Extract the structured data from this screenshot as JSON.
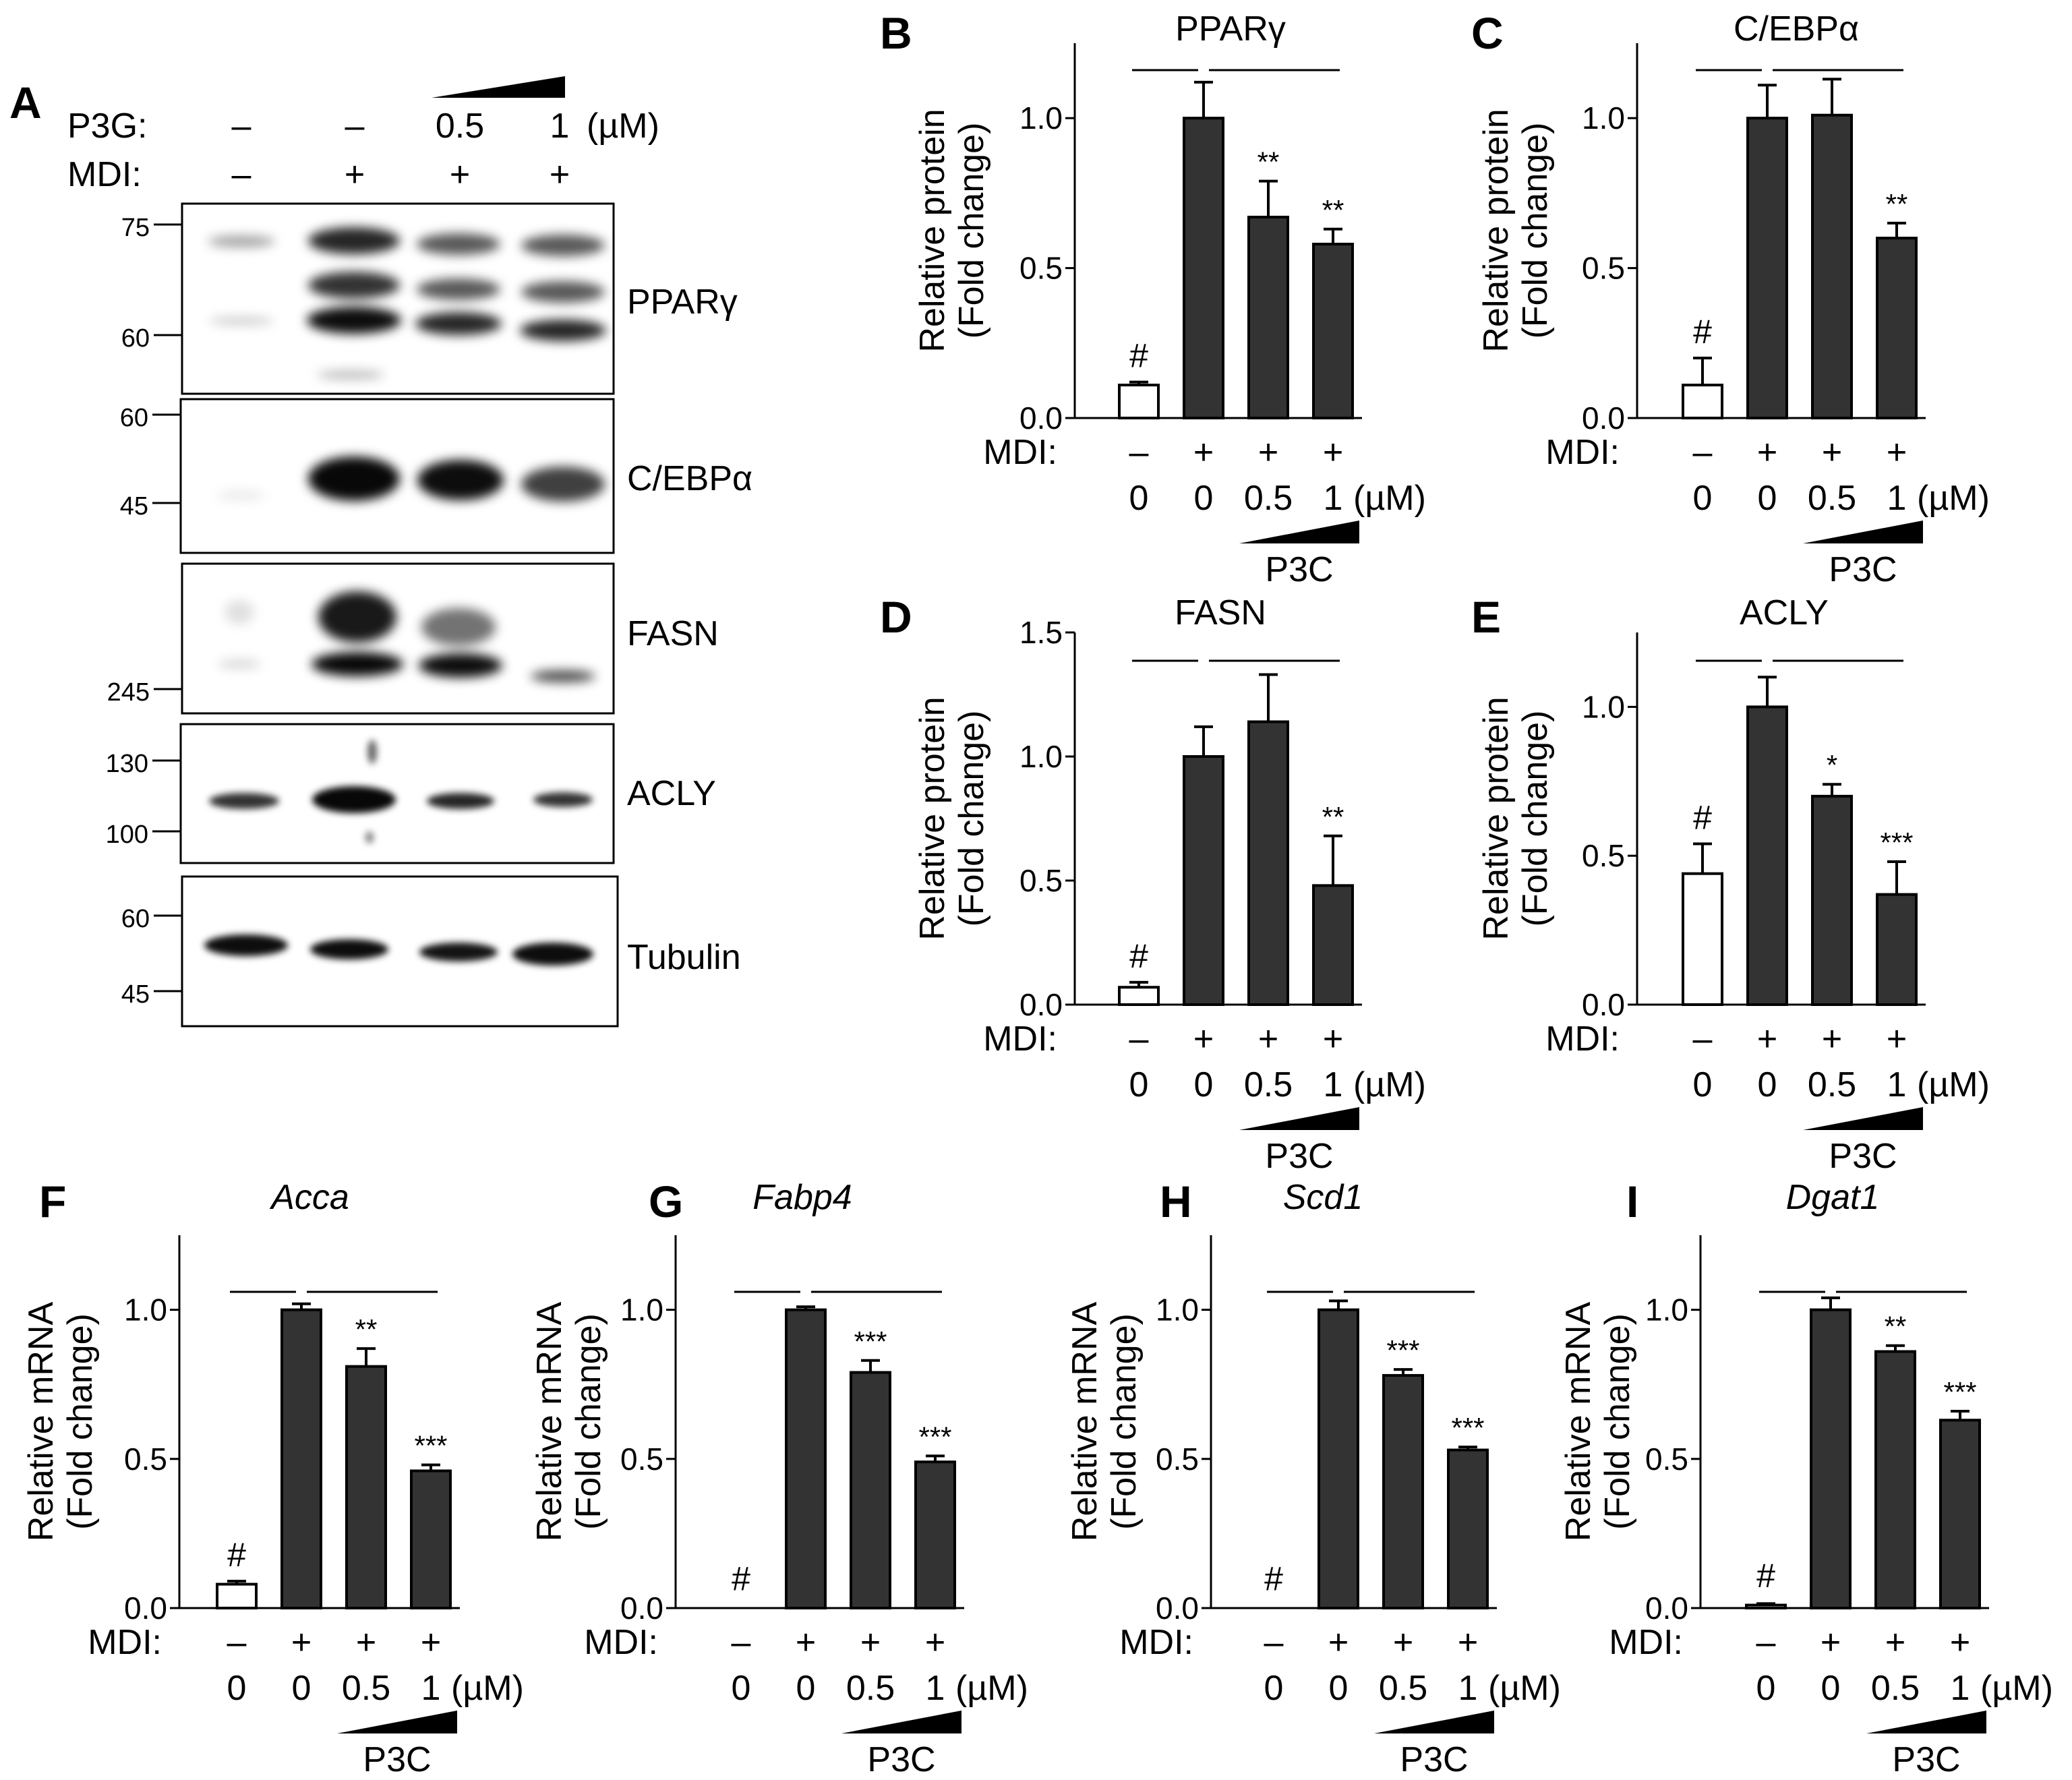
{
  "figure": {
    "panel_a": {
      "letter": "A",
      "treatments": [
        {
          "label": "P3G:",
          "values": [
            "–",
            "–",
            "0.5",
            "1"
          ],
          "unit": "(µM)"
        },
        {
          "label": "MDI:",
          "values": [
            "–",
            "+",
            "+",
            "+"
          ],
          "unit": ""
        }
      ],
      "blots": [
        {
          "protein": "PPARγ",
          "markers": [
            "75",
            "60"
          ]
        },
        {
          "protein": "C/EBPα",
          "markers": [
            "60",
            "45"
          ]
        },
        {
          "protein": "FASN",
          "markers": [
            "245"
          ]
        },
        {
          "protein": "ACLY",
          "markers": [
            "130",
            "100"
          ]
        },
        {
          "protein": "Tubulin",
          "markers": [
            "60",
            "45"
          ]
        }
      ]
    }
  },
  "chart_data": [
    {
      "panel": "B",
      "type": "bar",
      "title": "PPARγ",
      "ylabel": [
        "Relative protein",
        "(Fold change)"
      ],
      "ylim": [
        0,
        1.25
      ],
      "yticks": [
        "0.0",
        "0.5",
        "1.0"
      ],
      "mdi": [
        "–",
        "+",
        "+",
        "+"
      ],
      "doses": [
        "0",
        "0",
        "0.5",
        "1"
      ],
      "unit": "(µM)",
      "drug": "P3C",
      "values": [
        0.11,
        1.0,
        0.67,
        0.58
      ],
      "errors": [
        0.01,
        0.12,
        0.12,
        0.05
      ],
      "significance": [
        "#",
        "",
        "**",
        "**"
      ],
      "fills": [
        "#ffffff",
        "#333333",
        "#333333",
        "#333333"
      ]
    },
    {
      "panel": "C",
      "type": "bar",
      "title": "C/EBPα",
      "ylabel": [
        "Relative protein",
        "(Fold change)"
      ],
      "ylim": [
        0,
        1.25
      ],
      "yticks": [
        "0.0",
        "0.5",
        "1.0"
      ],
      "mdi": [
        "–",
        "+",
        "+",
        "+"
      ],
      "doses": [
        "0",
        "0",
        "0.5",
        "1"
      ],
      "unit": "(µM)",
      "drug": "P3C",
      "values": [
        0.11,
        1.0,
        1.01,
        0.6
      ],
      "errors": [
        0.09,
        0.11,
        0.12,
        0.05
      ],
      "significance": [
        "#",
        "",
        "",
        "**"
      ],
      "fills": [
        "#ffffff",
        "#333333",
        "#333333",
        "#333333"
      ]
    },
    {
      "panel": "D",
      "type": "bar",
      "title": "FASN",
      "ylabel": [
        "Relative protein",
        "(Fold change)"
      ],
      "ylim": [
        0,
        1.5
      ],
      "yticks": [
        "0.0",
        "0.5",
        "1.0",
        "1.5"
      ],
      "mdi": [
        "–",
        "+",
        "+",
        "+"
      ],
      "doses": [
        "0",
        "0",
        "0.5",
        "1"
      ],
      "unit": "(µM)",
      "drug": "P3C",
      "values": [
        0.07,
        1.0,
        1.14,
        0.48
      ],
      "errors": [
        0.02,
        0.12,
        0.19,
        0.2
      ],
      "significance": [
        "#",
        "",
        "",
        "**"
      ],
      "fills": [
        "#ffffff",
        "#333333",
        "#333333",
        "#333333"
      ]
    },
    {
      "panel": "E",
      "type": "bar",
      "title": "ACLY",
      "ylabel": [
        "Relative protein",
        "(Fold change)"
      ],
      "ylim": [
        0,
        1.25
      ],
      "yticks": [
        "0.0",
        "0.5",
        "1.0"
      ],
      "mdi": [
        "–",
        "+",
        "+",
        "+"
      ],
      "doses": [
        "0",
        "0",
        "0.5",
        "1"
      ],
      "unit": "(µM)",
      "drug": "P3C",
      "values": [
        0.44,
        1.0,
        0.7,
        0.37
      ],
      "errors": [
        0.1,
        0.1,
        0.04,
        0.11
      ],
      "significance": [
        "#",
        "",
        "*",
        "***"
      ],
      "fills": [
        "#ffffff",
        "#333333",
        "#333333",
        "#333333"
      ]
    },
    {
      "panel": "F",
      "type": "bar",
      "title": "Acca",
      "ylabel": [
        "Relative mRNA",
        "(Fold change)"
      ],
      "ylim": [
        0,
        1.25
      ],
      "yticks": [
        "0.0",
        "0.5",
        "1.0"
      ],
      "mdi": [
        "–",
        "+",
        "+",
        "+"
      ],
      "doses": [
        "0",
        "0",
        "0.5",
        "1"
      ],
      "unit": "(µM)",
      "drug": "P3C",
      "values": [
        0.08,
        1.0,
        0.81,
        0.46
      ],
      "errors": [
        0.01,
        0.02,
        0.06,
        0.02
      ],
      "significance": [
        "#",
        "",
        "**",
        "***"
      ],
      "fills": [
        "#ffffff",
        "#333333",
        "#333333",
        "#333333"
      ]
    },
    {
      "panel": "G",
      "type": "bar",
      "title": "Fabp4",
      "ylabel": [
        "Relative mRNA",
        "(Fold change)"
      ],
      "ylim": [
        0,
        1.25
      ],
      "yticks": [
        "0.0",
        "0.5",
        "1.0"
      ],
      "mdi": [
        "–",
        "+",
        "+",
        "+"
      ],
      "doses": [
        "0",
        "0",
        "0.5",
        "1"
      ],
      "unit": "(µM)",
      "drug": "P3C",
      "values": [
        0.0,
        1.0,
        0.79,
        0.49
      ],
      "errors": [
        0.0,
        0.01,
        0.04,
        0.02
      ],
      "significance": [
        "#",
        "",
        "***",
        "***"
      ],
      "fills": [
        "#ffffff",
        "#333333",
        "#333333",
        "#333333"
      ]
    },
    {
      "panel": "H",
      "type": "bar",
      "title": "Scd1",
      "ylabel": [
        "Relative mRNA",
        "(Fold change)"
      ],
      "ylim": [
        0,
        1.25
      ],
      "yticks": [
        "0.0",
        "0.5",
        "1.0"
      ],
      "mdi": [
        "–",
        "+",
        "+",
        "+"
      ],
      "doses": [
        "0",
        "0",
        "0.5",
        "1"
      ],
      "unit": "(µM)",
      "drug": "P3C",
      "values": [
        0.0,
        1.0,
        0.78,
        0.53
      ],
      "errors": [
        0.0,
        0.03,
        0.02,
        0.01
      ],
      "significance": [
        "#",
        "",
        "***",
        "***"
      ],
      "fills": [
        "#ffffff",
        "#333333",
        "#333333",
        "#333333"
      ]
    },
    {
      "panel": "I",
      "type": "bar",
      "title": "Dgat1",
      "ylabel": [
        "Relative mRNA",
        "(Fold change)"
      ],
      "ylim": [
        0,
        1.25
      ],
      "yticks": [
        "0.0",
        "0.5",
        "1.0"
      ],
      "mdi": [
        "–",
        "+",
        "+",
        "+"
      ],
      "doses": [
        "0",
        "0",
        "0.5",
        "1"
      ],
      "unit": "(µM)",
      "drug": "P3C",
      "values": [
        0.01,
        1.0,
        0.86,
        0.63
      ],
      "errors": [
        0.005,
        0.04,
        0.02,
        0.03
      ],
      "significance": [
        "#",
        "",
        "**",
        "***"
      ],
      "fills": [
        "#ffffff",
        "#333333",
        "#333333",
        "#333333"
      ]
    }
  ]
}
